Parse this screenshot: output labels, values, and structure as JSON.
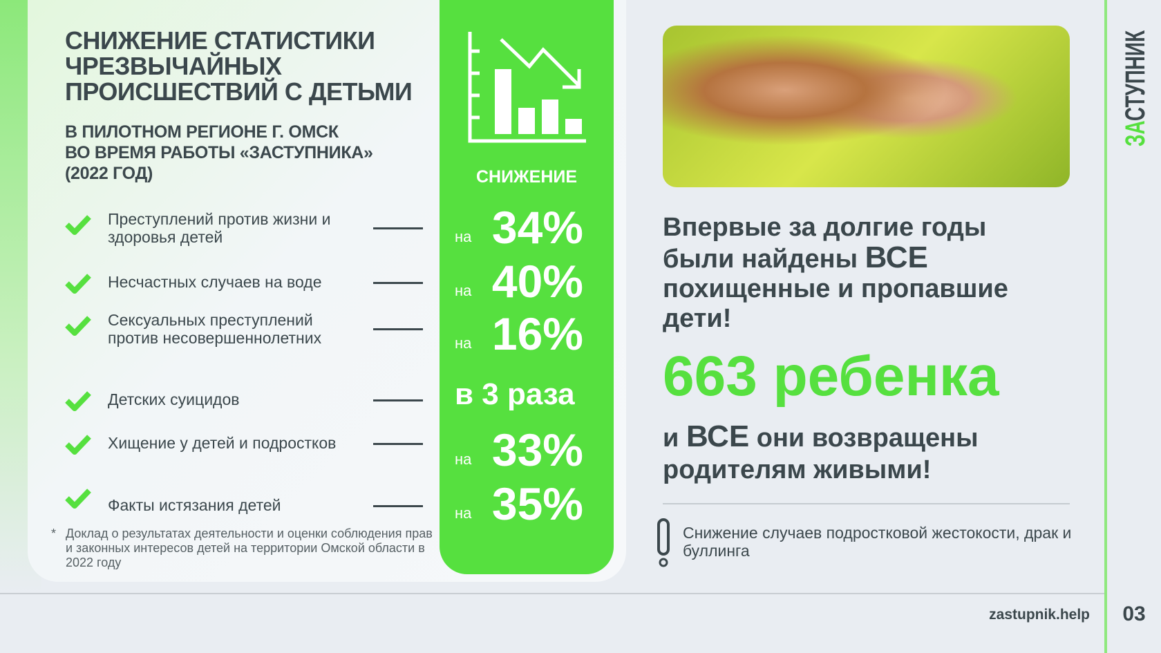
{
  "left": {
    "title": "Снижение статистики чрезвычайных происшествий с детьми",
    "subtitle_lines": [
      "В ПИЛОТНОМ РЕГИОНЕ Г. ОМСК",
      "ВО ВРЕМЯ РАБОТЫ «ЗАСТУПНИКА»",
      "(2022 ГОД)"
    ],
    "decrease_label": "СНИЖЕНИЕ",
    "items": [
      {
        "text": "Преступлений против жизни и здоровья детей",
        "prefix": "на",
        "value": "34%"
      },
      {
        "text": "Несчастных случаев на воде",
        "prefix": "на",
        "value": "40%"
      },
      {
        "text": "Сексуальных преступлений против несовершеннолетних",
        "prefix": "на",
        "value": "16%"
      },
      {
        "text": "Детских суицидов",
        "prefix": "",
        "value": "в 3 раза"
      },
      {
        "text": "Хищение у детей и подростков",
        "prefix": "на",
        "value": "33%"
      },
      {
        "text": "Факты истязания детей",
        "prefix": "на",
        "value": "35%"
      }
    ],
    "footnote_star": "*",
    "footnote": "Доклад о результатах деятельности и оценки соблюдения прав и законных интересов детей на территории Омской области в 2022 году"
  },
  "right": {
    "headline_part1": "Впервые за долгие годы были найдены",
    "headline_emph": "ВСЕ",
    "headline_part2": "похищенные и пропавшие дети!",
    "count": "663 ребенка",
    "returned_part1": "и",
    "returned_emph": "ВСЕ",
    "returned_part2": "они возвращены родителям живыми!",
    "note": "Снижение случаев подростковой жестокости, драк и буллинга"
  },
  "footer": {
    "site": "zastupnik.help",
    "page": "03"
  },
  "brand": {
    "logo_text": "ЗАСТУПНИК"
  },
  "colors": {
    "accent": "#56e03f",
    "text": "#3b474c",
    "background": "#e9edf2"
  }
}
